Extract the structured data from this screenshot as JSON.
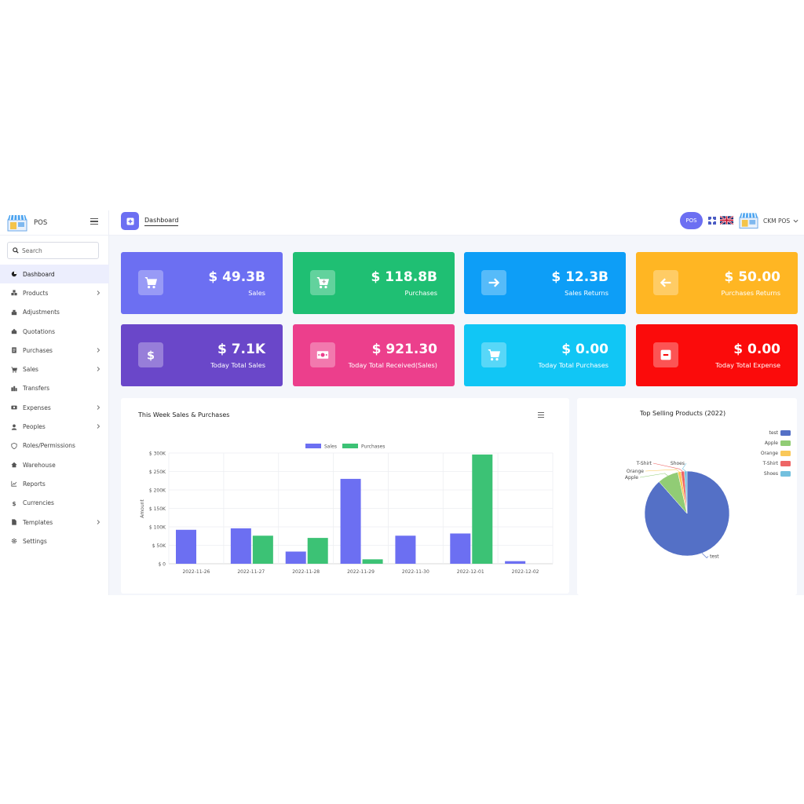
{
  "app": {
    "brand": "POS"
  },
  "search": {
    "placeholder": "Search"
  },
  "sidebar": {
    "items": [
      {
        "label": "Dashboard",
        "icon": "pie-chart-icon",
        "active": true,
        "chevron": false
      },
      {
        "label": "Products",
        "icon": "boxes-icon",
        "active": false,
        "chevron": true
      },
      {
        "label": "Adjustments",
        "icon": "adjust-icon",
        "active": false,
        "chevron": false
      },
      {
        "label": "Quotations",
        "icon": "quote-icon",
        "active": false,
        "chevron": false
      },
      {
        "label": "Purchases",
        "icon": "receipt-icon",
        "active": false,
        "chevron": true
      },
      {
        "label": "Sales",
        "icon": "cart-icon",
        "active": false,
        "chevron": true
      },
      {
        "label": "Transfers",
        "icon": "transfer-icon",
        "active": false,
        "chevron": false
      },
      {
        "label": "Expenses",
        "icon": "money-icon",
        "active": false,
        "chevron": true
      },
      {
        "label": "Peoples",
        "icon": "user-icon",
        "active": false,
        "chevron": true
      },
      {
        "label": "Roles/Permissions",
        "icon": "shield-icon",
        "active": false,
        "chevron": false
      },
      {
        "label": "Warehouse",
        "icon": "home-icon",
        "active": false,
        "chevron": false
      },
      {
        "label": "Reports",
        "icon": "line-chart-icon",
        "active": false,
        "chevron": false
      },
      {
        "label": "Currencies",
        "icon": "dollar-icon",
        "active": false,
        "chevron": false
      },
      {
        "label": "Templates",
        "icon": "file-icon",
        "active": false,
        "chevron": true
      },
      {
        "label": "Settings",
        "icon": "gear-icon",
        "active": false,
        "chevron": false
      }
    ]
  },
  "topbar": {
    "breadcrumb": "Dashboard",
    "pos_button": "POS",
    "user_name": "CKM POS"
  },
  "cards": [
    {
      "value": "$ 49.3B",
      "label": "Sales",
      "color": "#6c6ff2",
      "icon": "cart-icon"
    },
    {
      "value": "$ 118.8B",
      "label": "Purchases",
      "color": "#1fbf73",
      "icon": "cart-plus-icon"
    },
    {
      "value": "$ 12.3B",
      "label": "Sales Returns",
      "color": "#0d9ef7",
      "icon": "arrow-right-icon"
    },
    {
      "value": "$ 50.00",
      "label": "Purchases Returns",
      "color": "#ffb623",
      "icon": "arrow-left-icon"
    },
    {
      "value": "$ 7.1K",
      "label": "Today Total Sales",
      "color": "#6a47c9",
      "icon": "dollar-icon"
    },
    {
      "value": "$ 921.30",
      "label": "Today Total Received(Sales)",
      "color": "#ec3f8c",
      "icon": "cash-icon"
    },
    {
      "value": "$ 0.00",
      "label": "Today Total Purchases",
      "color": "#11c6f5",
      "icon": "cart-icon"
    },
    {
      "value": "$ 0.00",
      "label": "Today Total Expense",
      "color": "#fb0b0b",
      "icon": "minus-box-icon"
    }
  ],
  "charts": {
    "bar_title": "This Week Sales & Purchases",
    "pie_title": "Top Selling Products (2022)"
  },
  "chart_data": [
    {
      "type": "bar",
      "title": "This Week Sales & Purchases",
      "categories": [
        "2022-11-26",
        "2022-11-27",
        "2022-11-28",
        "2022-11-29",
        "2022-11-30",
        "2022-12-01",
        "2022-12-02"
      ],
      "series": [
        {
          "name": "Sales",
          "color": "#6c6ff2",
          "values": [
            92000,
            96000,
            33000,
            230000,
            76000,
            82000,
            7000
          ]
        },
        {
          "name": "Purchases",
          "color": "#3cc275",
          "values": [
            0,
            76000,
            70000,
            12000,
            0,
            296000,
            0
          ]
        }
      ],
      "ylabel": "Amount",
      "yticks": [
        "$ 0",
        "$ 50K",
        "$ 100K",
        "$ 150K",
        "$ 200K",
        "$ 250K",
        "$ 300K"
      ],
      "ylim": [
        0,
        300000
      ],
      "legend": "top",
      "grid": true
    },
    {
      "type": "pie",
      "title": "Top Selling Products (2022)",
      "labels": [
        "test",
        "Apple",
        "Orange",
        "T-Shirt",
        "Shoes"
      ],
      "values": [
        88.5,
        8,
        1.2,
        1.3,
        1
      ],
      "colors": [
        "#5470c6",
        "#91cc75",
        "#fac858",
        "#ee6666",
        "#73c0de"
      ],
      "legend": "right"
    }
  ]
}
